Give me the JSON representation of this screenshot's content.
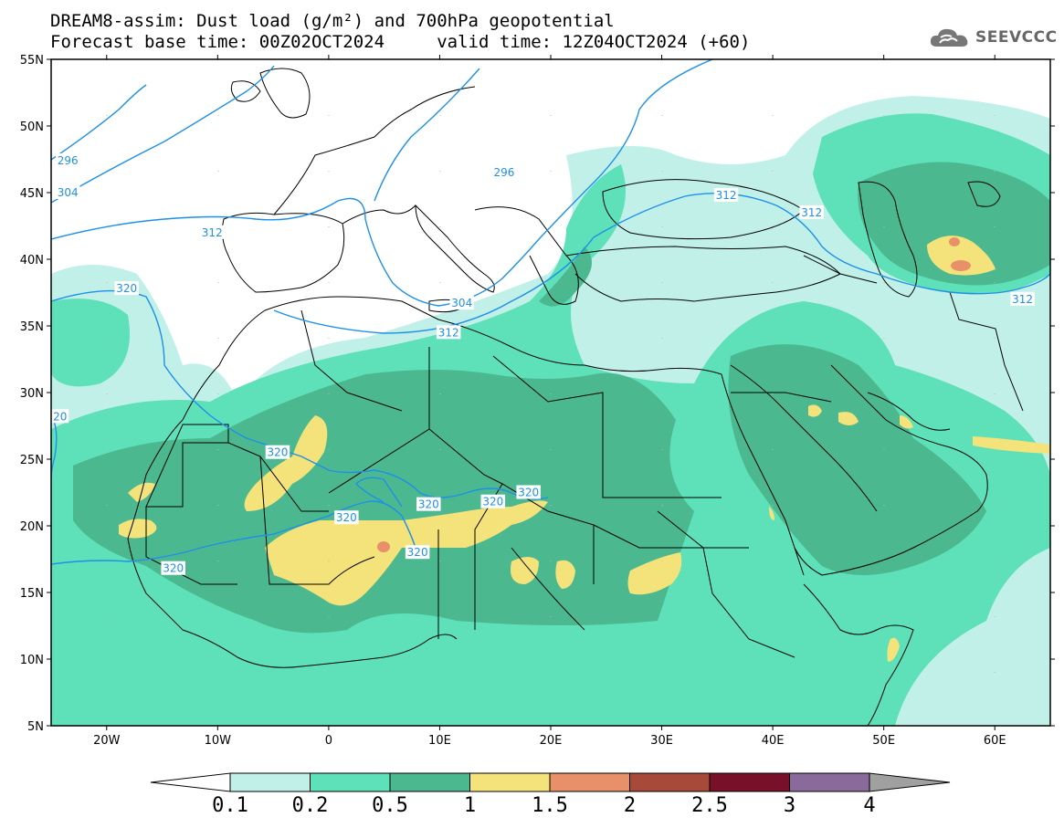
{
  "title_line1": "DREAM8-assim: Dust load (g/m²) and 700hPa geopotential",
  "title_line2": "Forecast base time: 00Z02OCT2024     valid time: 12Z04OCT2024 (+60)",
  "logo": {
    "text": "SEEVCCC",
    "icon": "cloud-icon"
  },
  "map": {
    "lon_range": [
      -25,
      65
    ],
    "lat_range": [
      5,
      55
    ],
    "lat_ticks": [
      {
        "value": 55,
        "label": "55N"
      },
      {
        "value": 50,
        "label": "50N"
      },
      {
        "value": 45,
        "label": "45N"
      },
      {
        "value": 40,
        "label": "40N"
      },
      {
        "value": 35,
        "label": "35N"
      },
      {
        "value": 30,
        "label": "30N"
      },
      {
        "value": 25,
        "label": "25N"
      },
      {
        "value": 20,
        "label": "20N"
      },
      {
        "value": 15,
        "label": "15N"
      },
      {
        "value": 10,
        "label": "10N"
      },
      {
        "value": 5,
        "label": "5N"
      }
    ],
    "lon_ticks": [
      {
        "value": -20,
        "label": "20W"
      },
      {
        "value": -10,
        "label": "10W"
      },
      {
        "value": 0,
        "label": "0"
      },
      {
        "value": 10,
        "label": "10E"
      },
      {
        "value": 20,
        "label": "20E"
      },
      {
        "value": 30,
        "label": "30E"
      },
      {
        "value": 40,
        "label": "40E"
      },
      {
        "value": 50,
        "label": "50E"
      },
      {
        "value": 60,
        "label": "60E"
      }
    ],
    "contour_color": "#1e90e8",
    "contour_labels": [
      {
        "text": "296",
        "lon": -23.5,
        "lat": 47.4
      },
      {
        "text": "304",
        "lon": -23.5,
        "lat": 45.0
      },
      {
        "text": "312",
        "lon": -10.5,
        "lat": 42.0
      },
      {
        "text": "320",
        "lon": -18.2,
        "lat": 37.8
      },
      {
        "text": "20",
        "lon": -24.2,
        "lat": 28.2
      },
      {
        "text": "296",
        "lon": 15.8,
        "lat": 46.5
      },
      {
        "text": "304",
        "lon": 12.0,
        "lat": 36.7
      },
      {
        "text": "312",
        "lon": 10.8,
        "lat": 34.5
      },
      {
        "text": "312",
        "lon": 35.8,
        "lat": 44.8
      },
      {
        "text": "312",
        "lon": 43.5,
        "lat": 43.5
      },
      {
        "text": "312",
        "lon": 62.5,
        "lat": 37.0
      },
      {
        "text": "320",
        "lon": -4.6,
        "lat": 25.5
      },
      {
        "text": "320",
        "lon": 1.6,
        "lat": 20.6
      },
      {
        "text": "320",
        "lon": 9.0,
        "lat": 21.6
      },
      {
        "text": "320",
        "lon": 14.8,
        "lat": 21.8
      },
      {
        "text": "320",
        "lon": 18.0,
        "lat": 22.5
      },
      {
        "text": "320",
        "lon": 8.0,
        "lat": 18.0
      },
      {
        "text": "320",
        "lon": -14.0,
        "lat": 16.8
      }
    ]
  },
  "colorbar": {
    "levels": [
      "0.1",
      "0.2",
      "0.5",
      "1",
      "1.5",
      "2",
      "2.5",
      "3",
      "4"
    ],
    "colors": [
      "#ffffff",
      "#c0f0e8",
      "#5ee0b8",
      "#4cb890",
      "#f4e27a",
      "#e8906a",
      "#a84a3a",
      "#78102a",
      "#8a6a9a",
      "#a0a0a0"
    ]
  }
}
